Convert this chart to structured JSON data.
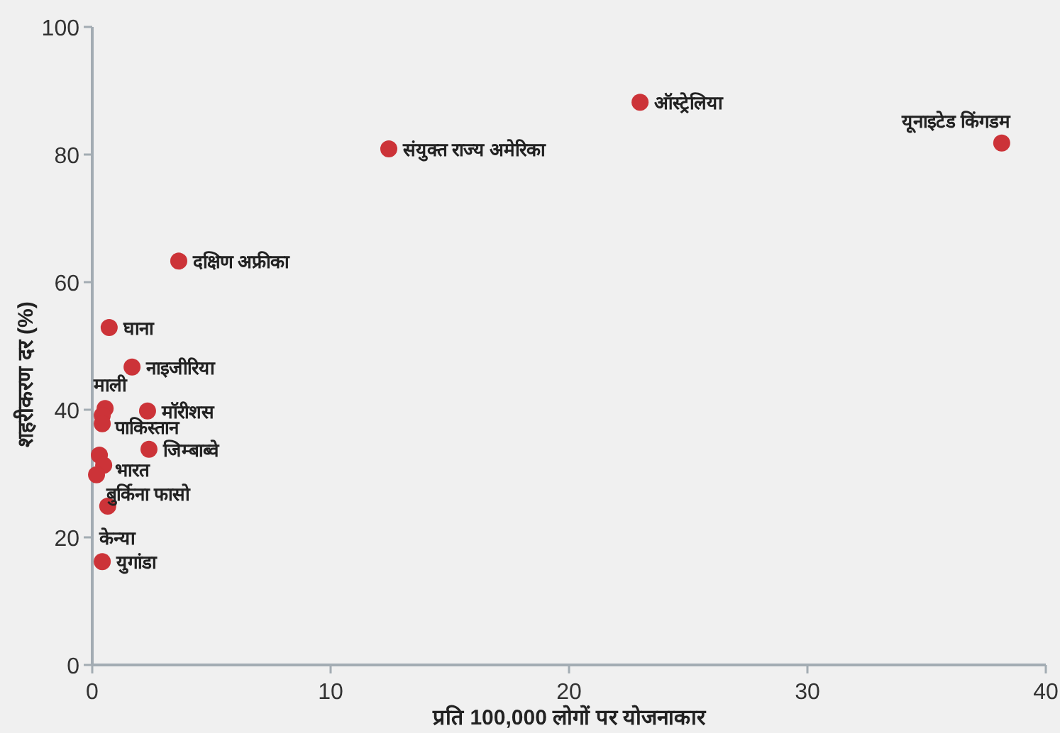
{
  "chart_data": {
    "type": "scatter",
    "xlabel": "प्रति 100,000 लोगों पर योजनाकार",
    "ylabel": "शहरीकरण दर (%)",
    "xlim": [
      0,
      40
    ],
    "ylim": [
      0,
      100
    ],
    "xticks": [
      0,
      10,
      20,
      30,
      40
    ],
    "yticks": [
      0,
      20,
      40,
      60,
      80,
      100
    ],
    "grid": false,
    "marker": "circle",
    "series": [
      {
        "color": "#cc3338",
        "x": [
          38.15,
          22.98,
          12.44,
          3.63,
          0.71,
          1.67,
          2.32,
          2.38,
          0.54,
          0.42,
          0.42,
          0.3,
          0.48,
          0.18,
          0.65,
          0.42
        ],
        "values": [
          81.8,
          88.2,
          80.9,
          63.3,
          52.9,
          46.7,
          39.8,
          33.8,
          40.2,
          39.1,
          37.8,
          32.9,
          31.3,
          29.8,
          24.9,
          16.2
        ]
      }
    ],
    "annotations": [
      {
        "text": "यूनाइटेड किंगडम",
        "x": 38.15,
        "y": 81.8
      },
      {
        "text": "ऑस्ट्रेलिया",
        "x": 22.98,
        "y": 88.2
      },
      {
        "text": "संयुक्त राज्य अमेरिका",
        "x": 12.44,
        "y": 80.9
      },
      {
        "text": "दक्षिण अफ्रीका",
        "x": 3.63,
        "y": 63.3
      },
      {
        "text": "घाना",
        "x": 0.71,
        "y": 52.9
      },
      {
        "text": "नाइजीरिया",
        "x": 1.67,
        "y": 46.7
      },
      {
        "text": "मॉरीशस",
        "x": 2.32,
        "y": 39.8
      },
      {
        "text": "जिम्बाब्वे",
        "x": 2.38,
        "y": 33.8
      },
      {
        "text": "माली",
        "x": 0.54,
        "y": 40.2
      },
      {
        "text": "पाकिस्तान",
        "x": 0.42,
        "y": 37.8
      },
      {
        "text": "भारत",
        "x": 0.48,
        "y": 31.3
      },
      {
        "text": "बुर्किना फासो",
        "x": 0.18,
        "y": 29.8
      },
      {
        "text": "केन्या",
        "x": 0.65,
        "y": 24.9
      },
      {
        "text": "युगांडा",
        "x": 0.42,
        "y": 16.2
      }
    ]
  }
}
